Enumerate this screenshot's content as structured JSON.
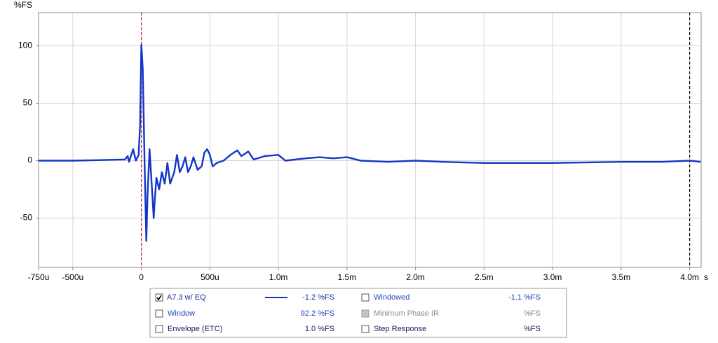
{
  "chart_data": {
    "type": "line",
    "ylabel": "%FS",
    "xlabel": "s",
    "xlim": [
      -0.75,
      4.084
    ],
    "ylim": [
      -93,
      129
    ],
    "xticks": [
      {
        "value": -0.75,
        "label": "-750u"
      },
      {
        "value": -0.5,
        "label": "-500u"
      },
      0,
      {
        "value": 0.5,
        "label": "500u"
      },
      {
        "value": 1.0,
        "label": "1.0m"
      },
      {
        "value": 1.5,
        "label": "1.5m"
      },
      {
        "value": 2.0,
        "label": "2.0m"
      },
      {
        "value": 2.5,
        "label": "2.5m"
      },
      {
        "value": 3.0,
        "label": "3.0m"
      },
      {
        "value": 3.5,
        "label": "3.5m"
      },
      {
        "value": 4.0,
        "label": "4.0m"
      }
    ],
    "yticks": [
      -50,
      0,
      50,
      100
    ],
    "grid": true,
    "cursors": [
      {
        "x": 0,
        "color": "#e02020"
      },
      {
        "x": 4.0,
        "color": "#000000"
      }
    ],
    "series": [
      {
        "name": "A7.3 w/ EQ",
        "color": "#1236c8",
        "checked": true,
        "readout": "-1.2 %FS",
        "x": [
          -0.75,
          -0.5,
          -0.3,
          -0.15,
          -0.12,
          -0.1,
          -0.09,
          -0.06,
          -0.04,
          -0.02,
          -0.01,
          0,
          0.01,
          0.02,
          0.025,
          0.036,
          0.045,
          0.06,
          0.075,
          0.09,
          0.1,
          0.11,
          0.13,
          0.15,
          0.17,
          0.19,
          0.21,
          0.24,
          0.26,
          0.28,
          0.3,
          0.32,
          0.34,
          0.36,
          0.38,
          0.41,
          0.44,
          0.46,
          0.48,
          0.5,
          0.52,
          0.55,
          0.6,
          0.65,
          0.7,
          0.73,
          0.78,
          0.82,
          0.9,
          1.0,
          1.05,
          1.2,
          1.3,
          1.4,
          1.5,
          1.6,
          1.8,
          2.0,
          2.2,
          2.5,
          3.0,
          3.5,
          3.8,
          4.0,
          4.08
        ],
        "values": [
          0,
          0,
          0.5,
          1,
          1,
          4,
          -1,
          10,
          0,
          5,
          30,
          101,
          80,
          20,
          -10,
          -70,
          -30,
          10,
          -20,
          -50,
          -30,
          -15,
          -25,
          -10,
          -20,
          -2,
          -20,
          -10,
          5,
          -10,
          -5,
          3,
          -10,
          -5,
          3,
          -8,
          -5,
          7,
          10,
          5,
          -5,
          -2,
          0,
          5,
          9,
          4,
          8,
          1,
          4,
          5,
          0,
          2,
          3,
          2,
          3,
          0,
          -1,
          0,
          -1,
          -2,
          -2,
          -1,
          -1,
          0,
          -1
        ]
      }
    ],
    "traces": [
      {
        "name": "Windowed",
        "readout": "-1.1 %FS",
        "checked": false,
        "enabled": true
      },
      {
        "name": "Window",
        "readout": "92.2 %FS",
        "checked": false,
        "enabled": true
      },
      {
        "name": "Minimum Phase IR",
        "readout": "%FS",
        "checked": false,
        "enabled": false
      },
      {
        "name": "Envelope (ETC)",
        "readout": "1.0 %FS",
        "checked": false,
        "enabled": true
      },
      {
        "name": "Step Response",
        "readout": "%FS",
        "checked": false,
        "enabled": true
      }
    ]
  }
}
